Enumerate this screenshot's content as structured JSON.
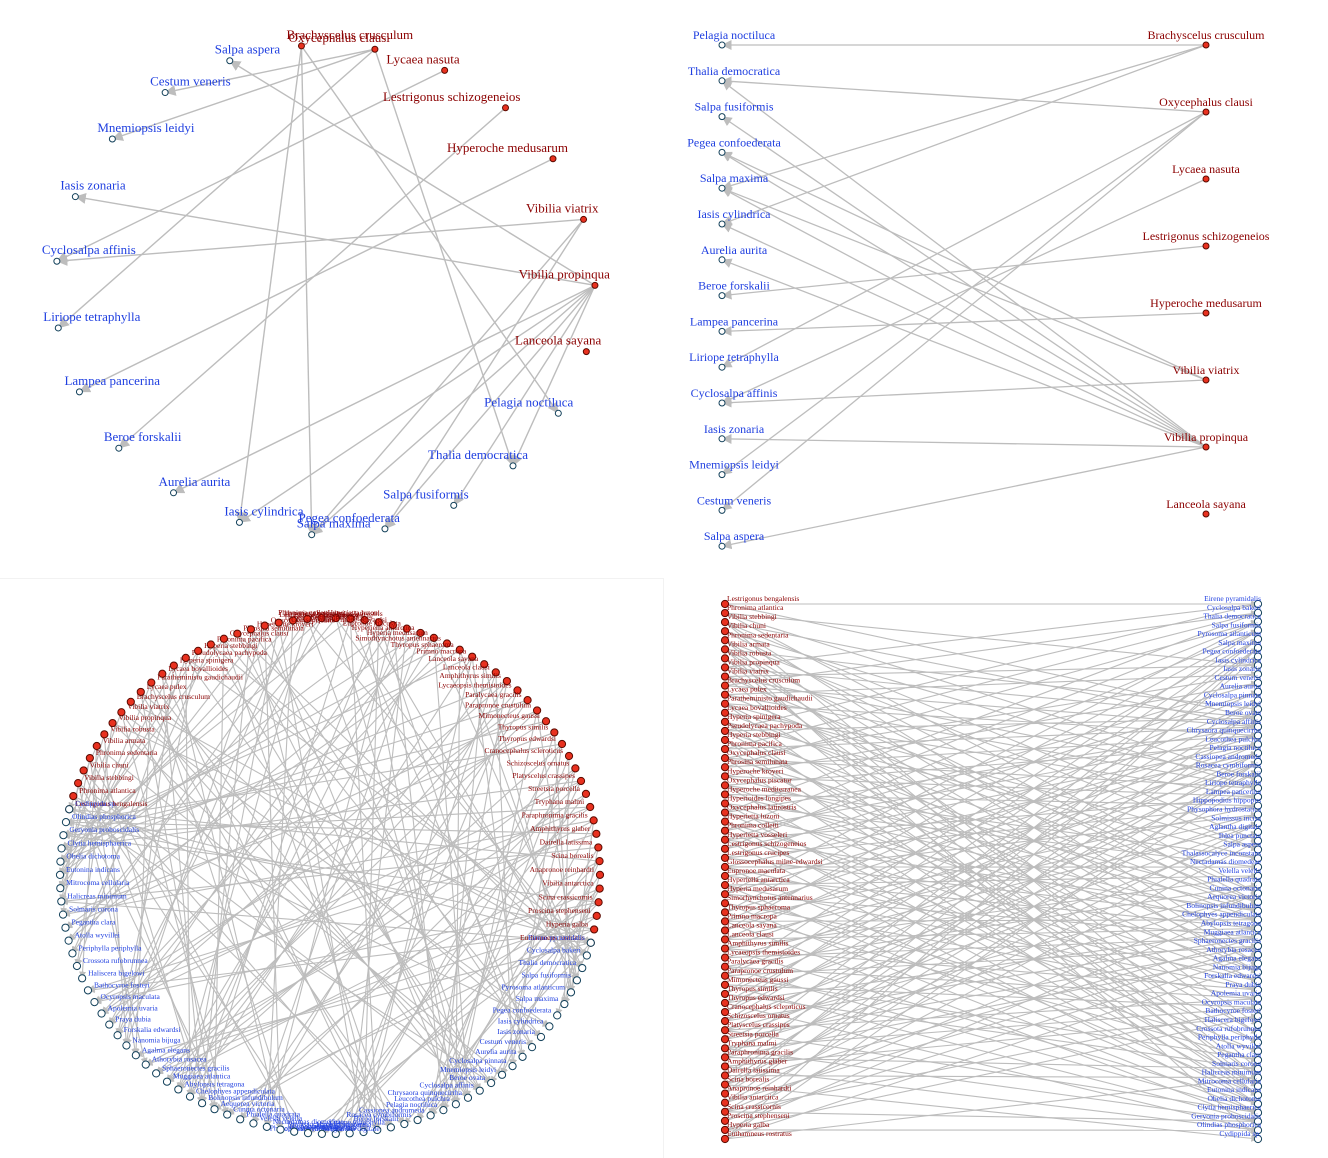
{
  "colors": {
    "predator_text": "#8b0000",
    "predator_fill": "#e8311f",
    "prey_text": "#1f3fe0",
    "prey_fill": "#ffffff",
    "prey_stroke": "#12405a",
    "edge": "#bdbdbd"
  },
  "small_network": {
    "predators": [
      "Brachyscelus crusculum",
      "Oxycephalus clausi",
      "Lycaea nasuta",
      "Lestrigonus schizogeneios",
      "Hyperoche medusarum",
      "Vibilia viatrix",
      "Vibilia propinqua",
      "Lanceola sayana"
    ],
    "prey": [
      "Pelagia noctiluca",
      "Thalia democratica",
      "Salpa fusiformis",
      "Pegea confoederata",
      "Salpa maxima",
      "Iasis cylindrica",
      "Aurelia aurita",
      "Beroe forskalii",
      "Lampea pancerina",
      "Liriope tetraphylla",
      "Cyclosalpa affinis",
      "Iasis zonaria",
      "Mnemiopsis leidyi",
      "Cestum veneris",
      "Salpa aspera"
    ],
    "edges": [
      [
        "Brachyscelus crusculum",
        "Pelagia noctiluca"
      ],
      [
        "Brachyscelus crusculum",
        "Salpa maxima"
      ],
      [
        "Brachyscelus crusculum",
        "Iasis cylindrica"
      ],
      [
        "Oxycephalus clausi",
        "Thalia democratica"
      ],
      [
        "Oxycephalus clausi",
        "Liriope tetraphylla"
      ],
      [
        "Oxycephalus clausi",
        "Cestum veneris"
      ],
      [
        "Oxycephalus clausi",
        "Mnemiopsis leidyi"
      ],
      [
        "Lycaea nasuta",
        "Cyclosalpa affinis"
      ],
      [
        "Lestrigonus schizogeneios",
        "Beroe forskalii"
      ],
      [
        "Hyperoche medusarum",
        "Lampea pancerina"
      ],
      [
        "Vibilia viatrix",
        "Pegea confoederata"
      ],
      [
        "Vibilia viatrix",
        "Salpa maxima"
      ],
      [
        "Vibilia viatrix",
        "Cyclosalpa affinis"
      ],
      [
        "Vibilia propinqua",
        "Thalia democratica"
      ],
      [
        "Vibilia propinqua",
        "Salpa fusiformis"
      ],
      [
        "Vibilia propinqua",
        "Pegea confoederata"
      ],
      [
        "Vibilia propinqua",
        "Salpa maxima"
      ],
      [
        "Vibilia propinqua",
        "Iasis cylindrica"
      ],
      [
        "Vibilia propinqua",
        "Aurelia aurita"
      ],
      [
        "Vibilia propinqua",
        "Iasis zonaria"
      ],
      [
        "Vibilia propinqua",
        "Salpa aspera"
      ]
    ]
  },
  "large_network": {
    "predators": [
      "Lestrigonus bengalensis",
      "Phronima atlantica",
      "Vibilia stebbingi",
      "Vibilia chuni",
      "Phronima sedentaria",
      "Vibilia armata",
      "Vibilia robusta",
      "Vibilia propinqua",
      "Vibilia viatrix",
      "Brachyscelus crusculum",
      "Lycaea pulex",
      "Paratheministo gaudichaudii",
      "Lycaea bovallioides",
      "Hyperia spinigera",
      "Pseudolycaea pachypoda",
      "Hyperia stebbingi",
      "Phronima pacifica",
      "Oxycephalus clausi",
      "Phrosina semilunata",
      "Hyperoche kroyeri",
      "Oxycephalus piscator",
      "Hyperoche mediterranea",
      "Hyperioides longipes",
      "Oxycephalus latirostris",
      "Hyperietta luzoni",
      "Phronima colletti",
      "Hyperietta vosseleri",
      "Lestrigonus schizogeneios",
      "Lestrigonus crucipes",
      "Glossocephalus milne-edwardsi",
      "Eupronoe maculata",
      "Hyperiella antarctica",
      "Hyperia medusarum",
      "Simorhynchotus antennarius",
      "Thyropus sphaeroma",
      "Primno macropa",
      "Lanceola sayana",
      "Lanceola clausi",
      "Amphithyrus similis",
      "Lycaeopsis themistoides",
      "Paralycaea gracilis",
      "Parapronoe crustulum",
      "Mimonecteus gaussi",
      "Thyropus similis",
      "Thyropus edwardsi",
      "Cranocephalus scleroticus",
      "Schizoscelus ornatus",
      "Platyscelus crassipes",
      "Streetsia porcella",
      "Tryphana malmi",
      "Paraphronima gracilis",
      "Amphithyrus glaber",
      "Dairella latissima",
      "Scina borealis",
      "Anapronoe reinhardti",
      "Vibilia antarctica",
      "Scina crassicornis",
      "Proscina stephenseni",
      "Hyperia galba",
      "Euthamneus rostratus"
    ],
    "prey": [
      "Eirene pyramidalis",
      "Cyclosalpa bakeri",
      "Thalia democratica",
      "Salpa fusiformis",
      "Pyrosoma atlanticum",
      "Salpa maxima",
      "Pegea confoederata",
      "Iasis cylindrica",
      "Iasis zonaria",
      "Cestum veneris",
      "Aurelia aurita",
      "Cyclosalpa pinnata",
      "Mnemiopsis leidyi",
      "Beroe ovata",
      "Cyclosalpa affinis",
      "Chrysaora quinquecirrha",
      "Leucothea pulchra",
      "Pelagia noctiluca",
      "Cassiopea andromeda",
      "Rosacea cymbiformis",
      "Beroe forskalii",
      "Liriope tetraphylla",
      "Lampea pancerina",
      "Hippopodius hippopus",
      "Physophora hydrostatica",
      "Solmissus incisa",
      "Aglantha digitale",
      "Ihlea punctata",
      "Salpa aspera",
      "Thalassocalyce inconstans",
      "Nectadamas diomedeae",
      "Velella velella",
      "Phialella quadrata",
      "Cunina octonaria",
      "Aequorea victoria",
      "Bolinopsis infundibulum",
      "Chelophyes appendiculata",
      "Abylopsis tetragona",
      "Muggiaea atlantica",
      "Sphaeronectes gracilis",
      "Athorybia rosacea",
      "Agalma elegans",
      "Nanomia bijuga",
      "Forskalia edwardsi",
      "Praya dubia",
      "Apolemia uvaria",
      "Ocyropsis maculata",
      "Bathocyroe fosteri",
      "Haliscera bigelowi",
      "Crossota rufobrunnea",
      "Periphylla periphylla",
      "Atolla wyvillei",
      "Pegantha clara",
      "Solmaris corona",
      "Halicreas minimum",
      "Mitrocoma cellularia",
      "Eutonina indicans",
      "Obelia dichotoma",
      "Clytia hemisphaerica",
      "Geryonia proboscidalis",
      "Olindias phosphorica",
      "Cydippida sp."
    ],
    "edges": []
  }
}
